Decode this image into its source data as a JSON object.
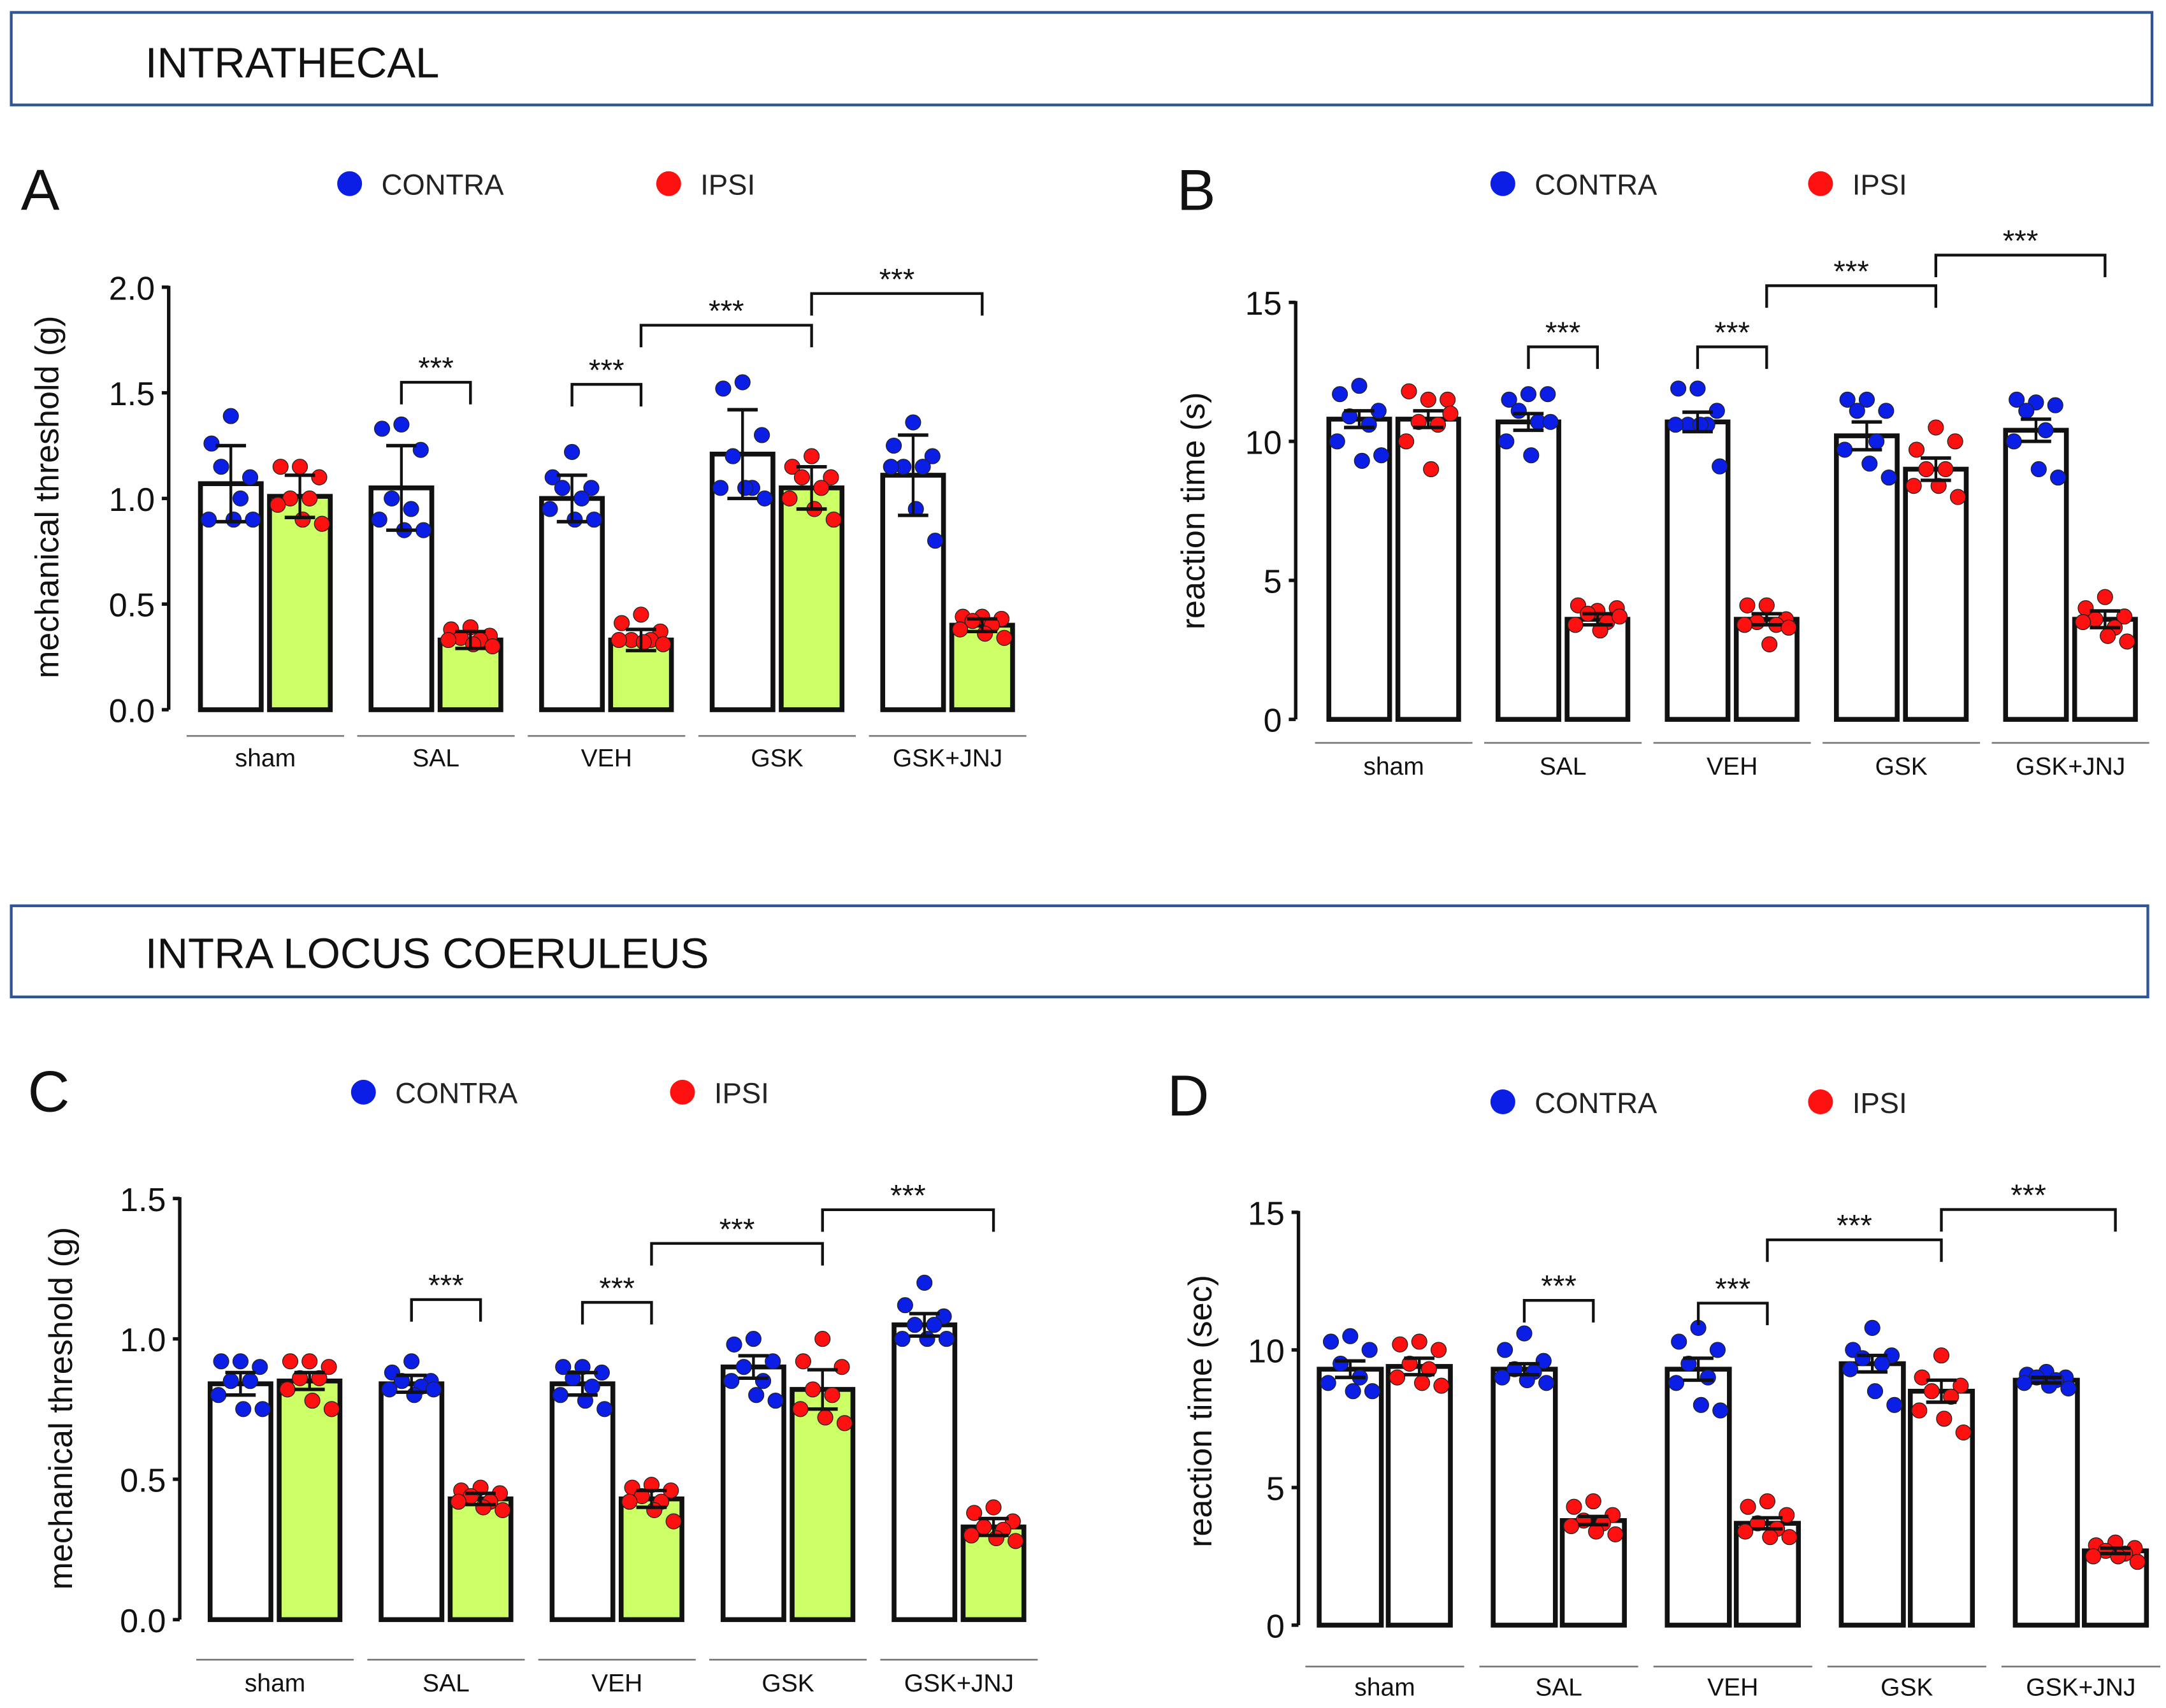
{
  "sections": [
    "INTRATHECAL",
    "INTRA LOCUS COERULEUS"
  ],
  "colors": {
    "contra": "#0a1ee6",
    "ipsi": "#ff1010",
    "ipsi_bar_fill": "#ccff66",
    "section_border": "#2f5597"
  },
  "chart_data": [
    {
      "type": "bar",
      "panel": "A",
      "ylabel": "mechanical threshold (g)",
      "ylim": [
        0,
        2.0
      ],
      "yticks": [
        "0.0",
        "0.5",
        "1.0",
        "1.5",
        "2.0"
      ],
      "ytick_values": [
        0,
        0.5,
        1.0,
        1.5,
        2.0
      ],
      "legend": [
        "CONTRA",
        "IPSI"
      ],
      "legend_position": "top-center",
      "ipsi_filled": true,
      "categories": [
        "sham",
        "SAL",
        "VEH",
        "GSK",
        "GSK+JNJ"
      ],
      "series": [
        {
          "name": "CONTRA",
          "means": [
            1.07,
            1.05,
            1.0,
            1.21,
            1.11
          ],
          "sem": [
            0.18,
            0.2,
            0.11,
            0.21,
            0.19
          ],
          "points": [
            [
              1.39,
              1.26,
              1.1,
              1.15,
              1.0,
              0.9,
              0.9,
              0.9
            ],
            [
              1.35,
              1.33,
              1.23,
              1.0,
              0.95,
              0.9,
              0.85,
              0.85
            ],
            [
              1.22,
              1.1,
              1.05,
              1.05,
              1.0,
              0.95,
              0.9,
              0.9
            ],
            [
              1.55,
              1.52,
              1.3,
              1.2,
              1.05,
              1.05,
              1.05,
              1.0
            ],
            [
              1.36,
              1.25,
              1.2,
              1.15,
              1.15,
              1.15,
              0.95,
              0.8
            ]
          ]
        },
        {
          "name": "IPSI",
          "means": [
            1.01,
            0.33,
            0.33,
            1.05,
            0.4
          ],
          "sem": [
            0.1,
            0.04,
            0.05,
            0.1,
            0.03
          ],
          "points": [
            [
              1.15,
              1.15,
              1.1,
              1.0,
              1.0,
              0.97,
              0.9,
              0.88
            ],
            [
              0.39,
              0.38,
              0.35,
              0.34,
              0.33,
              0.33,
              0.31,
              0.3
            ],
            [
              0.45,
              0.41,
              0.37,
              0.33,
              0.33,
              0.33,
              0.32,
              0.31
            ],
            [
              1.2,
              1.15,
              1.1,
              1.1,
              1.05,
              1.0,
              0.95,
              0.9
            ],
            [
              0.44,
              0.44,
              0.43,
              0.42,
              0.4,
              0.38,
              0.36,
              0.34
            ]
          ]
        }
      ],
      "significance": [
        {
          "from": [
            1,
            0
          ],
          "to": [
            1,
            1
          ],
          "y": 1.55,
          "label": "***"
        },
        {
          "from": [
            2,
            0
          ],
          "to": [
            2,
            1
          ],
          "y": 1.54,
          "label": "***"
        },
        {
          "from": [
            2,
            1
          ],
          "to": [
            3,
            1
          ],
          "y": 1.82,
          "label": "***"
        },
        {
          "from": [
            3,
            1
          ],
          "to": [
            4,
            1
          ],
          "y": 1.97,
          "label": "***"
        }
      ]
    },
    {
      "type": "bar",
      "panel": "B",
      "ylabel": "reaction time (s)",
      "ylim": [
        0,
        15
      ],
      "yticks": [
        "0",
        "5",
        "10",
        "15"
      ],
      "ytick_values": [
        0,
        5,
        10,
        15
      ],
      "legend": [
        "CONTRA",
        "IPSI"
      ],
      "legend_position": "top-center",
      "ipsi_filled": false,
      "categories": [
        "sham",
        "SAL",
        "VEH",
        "GSK",
        "GSK+JNJ"
      ],
      "series": [
        {
          "name": "CONTRA",
          "means": [
            10.8,
            10.7,
            10.7,
            10.2,
            10.4
          ],
          "sem": [
            0.3,
            0.3,
            0.35,
            0.5,
            0.4
          ],
          "points": [
            [
              12,
              11.7,
              11.1,
              10.9,
              10.6,
              10.0,
              9.3,
              9.5
            ],
            [
              11.7,
              11.5,
              11.7,
              11.1,
              10.7,
              10.0,
              9.5,
              10.7
            ],
            [
              11.9,
              11.9,
              11.1,
              10.6,
              10.6,
              10.6,
              10.6,
              9.1
            ],
            [
              11.5,
              11.5,
              11.1,
              11.1,
              10.0,
              9.7,
              9.2,
              8.7
            ],
            [
              11.4,
              11.5,
              11.3,
              11.1,
              10.4,
              10.0,
              9.0,
              8.7
            ]
          ]
        },
        {
          "name": "IPSI",
          "means": [
            10.8,
            3.6,
            3.6,
            9.0,
            3.6
          ],
          "sem": [
            0.3,
            0.2,
            0.2,
            0.4,
            0.3
          ],
          "points": [
            [
              11.5,
              11.8,
              11.5,
              10.7,
              10.6,
              10.0,
              9.0,
              11.0
            ],
            [
              3.9,
              4.1,
              4.0,
              3.8,
              3.5,
              3.4,
              3.2,
              3.7
            ],
            [
              4.1,
              4.1,
              3.6,
              3.5,
              3.4,
              3.4,
              2.7,
              3.3
            ],
            [
              10.5,
              9.7,
              10.0,
              9.0,
              9.0,
              8.4,
              8.4,
              8.0
            ],
            [
              4.4,
              4.0,
              3.7,
              3.6,
              3.3,
              3.5,
              3.0,
              2.8
            ]
          ]
        }
      ],
      "significance": [
        {
          "from": [
            1,
            0
          ],
          "to": [
            1,
            1
          ],
          "y": 13.4,
          "label": "***"
        },
        {
          "from": [
            2,
            0
          ],
          "to": [
            2,
            1
          ],
          "y": 13.4,
          "label": "***"
        },
        {
          "from": [
            2,
            1
          ],
          "to": [
            3,
            1
          ],
          "y": 15.6,
          "label": "***"
        },
        {
          "from": [
            3,
            1
          ],
          "to": [
            4,
            1
          ],
          "y": 16.7,
          "label": "***"
        }
      ]
    },
    {
      "type": "bar",
      "panel": "C",
      "ylabel": "mechanical threshold (g)",
      "ylim": [
        0,
        1.5
      ],
      "yticks": [
        "0.0",
        "0.5",
        "1.0",
        "1.5"
      ],
      "ytick_values": [
        0,
        0.5,
        1.0,
        1.5
      ],
      "legend": [
        "CONTRA",
        "IPSI"
      ],
      "legend_position": "top-center",
      "ipsi_filled": true,
      "categories": [
        "sham",
        "SAL",
        "VEH",
        "GSK",
        "GSK+JNJ"
      ],
      "series": [
        {
          "name": "CONTRA",
          "means": [
            0.84,
            0.84,
            0.84,
            0.9,
            1.05
          ],
          "sem": [
            0.04,
            0.03,
            0.04,
            0.04,
            0.04
          ],
          "points": [
            [
              0.92,
              0.92,
              0.9,
              0.85,
              0.85,
              0.8,
              0.75,
              0.75
            ],
            [
              0.92,
              0.88,
              0.85,
              0.85,
              0.83,
              0.82,
              0.8,
              0.82
            ],
            [
              0.9,
              0.9,
              0.88,
              0.86,
              0.83,
              0.8,
              0.78,
              0.75
            ],
            [
              1.0,
              0.98,
              0.92,
              0.9,
              0.85,
              0.85,
              0.8,
              0.78
            ],
            [
              1.2,
              1.12,
              1.08,
              1.05,
              1.05,
              1.0,
              1.0,
              1.0
            ]
          ]
        },
        {
          "name": "IPSI",
          "means": [
            0.85,
            0.43,
            0.43,
            0.82,
            0.33
          ],
          "sem": [
            0.03,
            0.02,
            0.03,
            0.07,
            0.03
          ],
          "points": [
            [
              0.92,
              0.92,
              0.9,
              0.86,
              0.86,
              0.82,
              0.78,
              0.75
            ],
            [
              0.47,
              0.46,
              0.45,
              0.44,
              0.42,
              0.42,
              0.4,
              0.39
            ],
            [
              0.48,
              0.47,
              0.46,
              0.44,
              0.42,
              0.42,
              0.39,
              0.35
            ],
            [
              1.0,
              0.92,
              0.9,
              0.82,
              0.8,
              0.75,
              0.72,
              0.7
            ],
            [
              0.4,
              0.38,
              0.35,
              0.33,
              0.32,
              0.3,
              0.29,
              0.28
            ]
          ]
        }
      ],
      "significance": [
        {
          "from": [
            1,
            0
          ],
          "to": [
            1,
            1
          ],
          "y": 1.14,
          "label": "***"
        },
        {
          "from": [
            2,
            0
          ],
          "to": [
            2,
            1
          ],
          "y": 1.13,
          "label": "***"
        },
        {
          "from": [
            2,
            1
          ],
          "to": [
            3,
            1
          ],
          "y": 1.34,
          "label": "***"
        },
        {
          "from": [
            3,
            1
          ],
          "to": [
            4,
            1
          ],
          "y": 1.46,
          "label": "***"
        }
      ]
    },
    {
      "type": "bar",
      "panel": "D",
      "ylabel": "reaction time (sec)",
      "ylim": [
        0,
        15
      ],
      "yticks": [
        "0",
        "5",
        "10",
        "15"
      ],
      "ytick_values": [
        0,
        5,
        10,
        15
      ],
      "legend": [
        "CONTRA",
        "IPSI"
      ],
      "legend_position": "top-center",
      "ipsi_filled": false,
      "categories": [
        "sham",
        "SAL",
        "VEH",
        "GSK",
        "GSK+JNJ"
      ],
      "series": [
        {
          "name": "CONTRA",
          "means": [
            9.3,
            9.3,
            9.3,
            9.5,
            8.9
          ],
          "sem": [
            0.3,
            0.2,
            0.4,
            0.3,
            0.1
          ],
          "points": [
            [
              10.5,
              10.3,
              10.0,
              9.5,
              9.0,
              8.8,
              8.5,
              8.5
            ],
            [
              10.6,
              10.0,
              9.6,
              9.3,
              9.2,
              9.0,
              8.9,
              8.8
            ],
            [
              10.8,
              10.3,
              10.0,
              9.5,
              9.0,
              8.8,
              8.0,
              7.8
            ],
            [
              10.8,
              10.0,
              9.8,
              9.7,
              9.5,
              9.3,
              8.5,
              8.0
            ],
            [
              9.2,
              9.1,
              9.0,
              9.0,
              8.9,
              8.8,
              8.7,
              8.6
            ]
          ]
        },
        {
          "name": "IPSI",
          "means": [
            9.4,
            3.8,
            3.7,
            8.5,
            2.7
          ],
          "sem": [
            0.3,
            0.15,
            0.2,
            0.4,
            0.1
          ],
          "points": [
            [
              10.3,
              10.2,
              10.0,
              9.5,
              9.3,
              9.0,
              8.8,
              8.7
            ],
            [
              4.5,
              4.3,
              4.0,
              3.8,
              3.7,
              3.6,
              3.4,
              3.3
            ],
            [
              4.5,
              4.3,
              4.0,
              3.7,
              3.5,
              3.4,
              3.2,
              3.2
            ],
            [
              9.8,
              9.0,
              8.7,
              8.5,
              8.3,
              7.8,
              7.5,
              7.0
            ],
            [
              3.0,
              2.9,
              2.8,
              2.7,
              2.6,
              2.5,
              2.5,
              2.3
            ]
          ]
        }
      ],
      "significance": [
        {
          "from": [
            1,
            0
          ],
          "to": [
            1,
            1
          ],
          "y": 11.8,
          "label": "***"
        },
        {
          "from": [
            2,
            0
          ],
          "to": [
            2,
            1
          ],
          "y": 11.7,
          "label": "***"
        },
        {
          "from": [
            2,
            1
          ],
          "to": [
            3,
            1
          ],
          "y": 14.0,
          "label": "***"
        },
        {
          "from": [
            3,
            1
          ],
          "to": [
            4,
            1
          ],
          "y": 15.1,
          "label": "***"
        }
      ]
    }
  ]
}
